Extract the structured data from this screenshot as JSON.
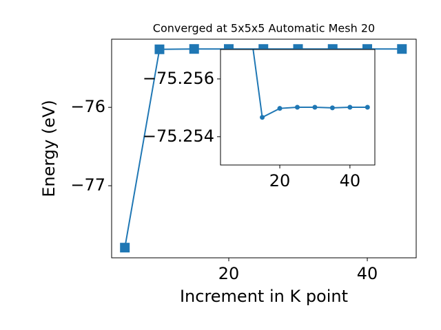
{
  "chart_data": [
    {
      "type": "line",
      "title": "Converged at 5x5x5 Automatic Mesh 20",
      "xlabel": "Increment in K point",
      "ylabel": "Energy (eV)",
      "x": [
        5,
        10,
        15,
        20,
        25,
        30,
        35,
        40,
        45
      ],
      "series": [
        {
          "color": "#1f77b4",
          "marker": "s",
          "values": [
            -77.79,
            -75.2592,
            -75.25467,
            -75.25498,
            -75.25502,
            -75.25502,
            -75.255,
            -75.25502,
            -75.25502
          ]
        }
      ],
      "xlim": [
        3.09,
        47.06
      ],
      "ylim": [
        -77.92,
        -75.13
      ],
      "xticks": [
        20,
        40
      ],
      "yticks": [
        {
          "value": -77,
          "label": "−77"
        },
        {
          "value": -76,
          "label": "−76"
        }
      ]
    },
    {
      "type": "line",
      "inset": true,
      "marker": "o",
      "xlim": [
        3.1,
        47.1
      ],
      "ylim": [
        -75.25302,
        -75.25702
      ],
      "xticks": [
        20,
        40
      ],
      "yticks": [
        {
          "value": -75.256,
          "label": "−75.256"
        },
        {
          "value": -75.254,
          "label": "−75.254"
        }
      ]
    }
  ]
}
